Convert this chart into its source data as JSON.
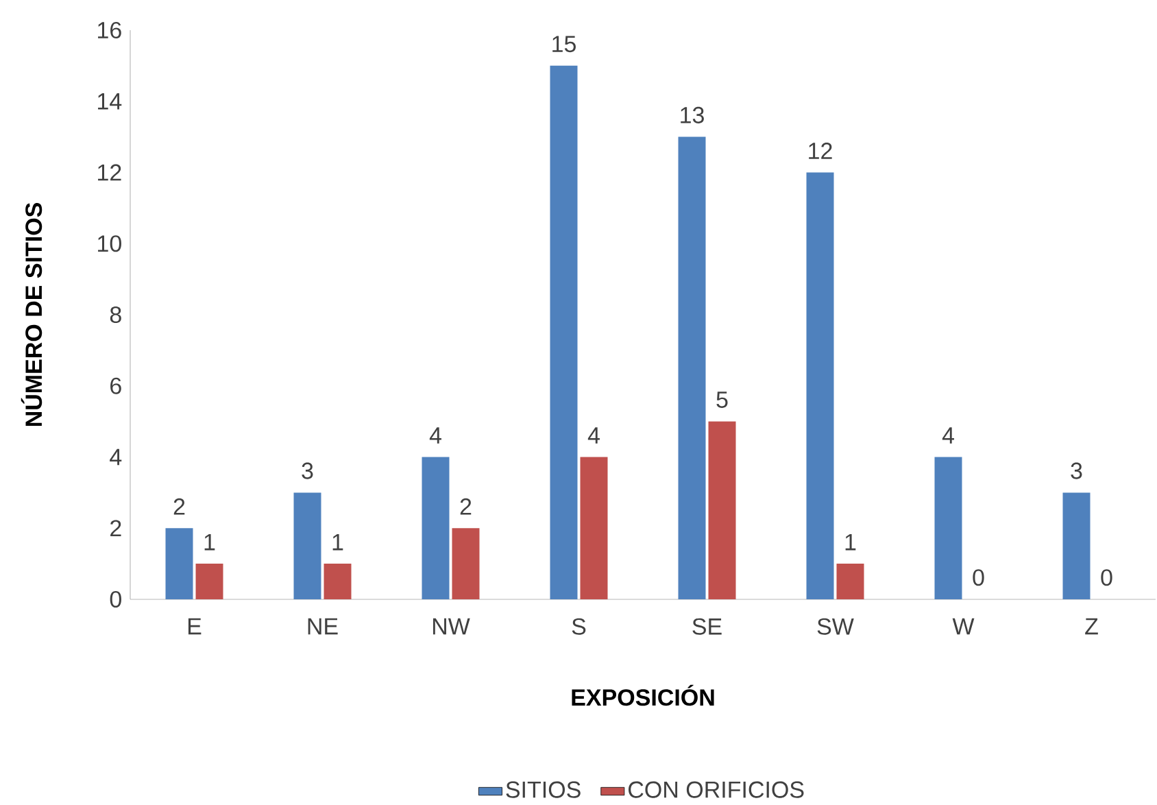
{
  "chart_data": {
    "type": "bar",
    "xlabel": "EXPOSICIÓN",
    "ylabel": "NÚMERO DE SITIOS",
    "categories": [
      "E",
      "NE",
      "NW",
      "S",
      "SE",
      "SW",
      "W",
      "Z"
    ],
    "series": [
      {
        "name": "SITIOS",
        "color": "#4f81bd",
        "values": [
          2,
          3,
          4,
          15,
          13,
          12,
          4,
          3
        ]
      },
      {
        "name": "CON ORIFICIOS",
        "color": "#c0504d",
        "values": [
          1,
          1,
          2,
          4,
          5,
          1,
          0,
          0
        ]
      }
    ],
    "ylim": [
      0,
      16
    ],
    "yticks": [
      0,
      2,
      4,
      6,
      8,
      10,
      12,
      14,
      16
    ],
    "data_labels": true,
    "legend": "bottom"
  }
}
